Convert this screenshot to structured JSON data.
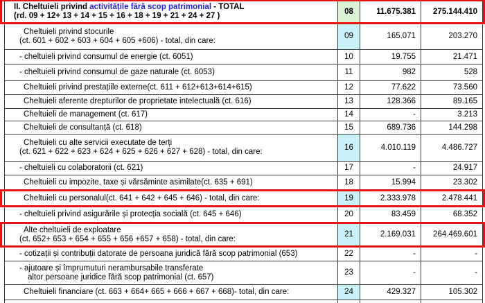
{
  "colors": {
    "border": "#3c3c3c",
    "highlight_box": "#e41414",
    "code_bg_green": "#ddf3d6",
    "code_bg_cyan": "#c9f2f8",
    "text_black": "#000000",
    "text_blue": "#2323cc"
  },
  "table": {
    "columns": [
      "description",
      "row_code",
      "value_1",
      "value_2"
    ],
    "rows": [
      {
        "code": "08",
        "code_bg": "green",
        "bold": true,
        "highlighted": true,
        "val1": "11.675.381",
        "val2": "275.144.410",
        "lines": [
          {
            "indent": "section",
            "segments": [
              {
                "text": "II. Cheltuieli privind ",
                "style": "black"
              },
              {
                "text": "activitățile fără scop patrimonial",
                "style": "blue"
              },
              {
                "text": " - TOTAL",
                "style": "black"
              }
            ]
          },
          {
            "indent": "section",
            "segments": [
              {
                "text": "(rd. 09 + 12+ 13 + 14 + 15 + 16 + 18 + 19 + 21 + 24 + 27 )",
                "style": "black"
              }
            ]
          }
        ]
      },
      {
        "code": "09",
        "code_bg": "cyan",
        "bold": false,
        "highlighted": false,
        "val1": "165.071",
        "val2": "203.270",
        "lines": [
          {
            "indent": "item",
            "segments": [
              {
                "text": "Cheltuieli privind stocurile",
                "style": "black"
              }
            ]
          },
          {
            "indent": "formula",
            "segments": [
              {
                "text": "(ct. 601 + 602 + 603 + 604 + 605 +606) - total, din care:",
                "style": "black"
              }
            ]
          }
        ]
      },
      {
        "code": "10",
        "code_bg": "white",
        "bold": false,
        "highlighted": false,
        "val1": "19.755",
        "val2": "21.471",
        "lines": [
          {
            "indent": "sub",
            "segments": [
              {
                "text": "- cheltuieli privind consumul de energie (ct. 6051)",
                "style": "black"
              }
            ]
          }
        ]
      },
      {
        "code": "11",
        "code_bg": "white",
        "bold": false,
        "highlighted": false,
        "val1": "982",
        "val2": "528",
        "lines": [
          {
            "indent": "sub",
            "segments": [
              {
                "text": "- cheltuieli privind consumul de gaze naturale (ct. 6053)",
                "style": "black"
              }
            ]
          }
        ]
      },
      {
        "code": "12",
        "code_bg": "white",
        "bold": false,
        "highlighted": false,
        "val1": "77.622",
        "val2": "73.560",
        "lines": [
          {
            "indent": "item",
            "segments": [
              {
                "text": "Cheltuieli privind prestațiile externe(ct. 611 + 612+613+614+615)",
                "style": "black"
              }
            ]
          }
        ]
      },
      {
        "code": "13",
        "code_bg": "white",
        "bold": false,
        "highlighted": false,
        "val1": "128.366",
        "val2": "89.165",
        "lines": [
          {
            "indent": "item",
            "segments": [
              {
                "text": "Cheltuieli aferente drepturilor de proprietate intelectuală (ct. 616)",
                "style": "black"
              }
            ]
          }
        ]
      },
      {
        "code": "14",
        "code_bg": "white",
        "bold": false,
        "highlighted": false,
        "val1": "-",
        "val2": "3.213",
        "lines": [
          {
            "indent": "item",
            "segments": [
              {
                "text": "Cheltuieli de management (ct. 617)",
                "style": "black"
              }
            ]
          }
        ]
      },
      {
        "code": "15",
        "code_bg": "white",
        "bold": false,
        "highlighted": false,
        "val1": "689.736",
        "val2": "144.298",
        "lines": [
          {
            "indent": "item",
            "segments": [
              {
                "text": "Cheltuieli de consultanță (ct. 618)",
                "style": "black"
              }
            ]
          }
        ]
      },
      {
        "code": "16",
        "code_bg": "cyan",
        "bold": false,
        "highlighted": false,
        "val1": "4.010.119",
        "val2": "4.486.727",
        "lines": [
          {
            "indent": "item",
            "segments": [
              {
                "text": "Cheltuieli cu alte servicii executate de terți",
                "style": "black"
              }
            ]
          },
          {
            "indent": "formula",
            "segments": [
              {
                "text": "(ct. 621 + 622 + 623 + 624 + 625 + 626 + 627 + 628) - total, din care:",
                "style": "black"
              }
            ]
          }
        ]
      },
      {
        "code": "17",
        "code_bg": "white",
        "bold": false,
        "highlighted": false,
        "val1": "-",
        "val2": "24.917",
        "lines": [
          {
            "indent": "sub",
            "segments": [
              {
                "text": "- cheltuieli cu colaboratorii (ct. 621)",
                "style": "black"
              }
            ]
          }
        ]
      },
      {
        "code": "18",
        "code_bg": "white",
        "bold": false,
        "highlighted": false,
        "val1": "15.994",
        "val2": "23.302",
        "lines": [
          {
            "indent": "item",
            "segments": [
              {
                "text": "Cheltuieli cu impozite, taxe și vărsăminte asimilate(ct. 635 + 691)",
                "style": "black"
              }
            ]
          }
        ]
      },
      {
        "code": "19",
        "code_bg": "cyan",
        "bold": false,
        "highlighted": true,
        "val1": "2.333.978",
        "val2": "2.478.441",
        "lines": [
          {
            "indent": "item",
            "segments": [
              {
                "text": "Cheltuieli cu personalul(ct. 641 + 642 + 645 + 646) - total, din care:",
                "style": "black"
              }
            ]
          }
        ]
      },
      {
        "code": "20",
        "code_bg": "white",
        "bold": false,
        "highlighted": false,
        "val1": "83.459",
        "val2": "68.352",
        "lines": [
          {
            "indent": "sub",
            "segments": [
              {
                "text": "- cheltuieli privind asigurările și protecția socială (ct. 645 + 646)",
                "style": "black"
              }
            ]
          }
        ]
      },
      {
        "code": "21",
        "code_bg": "cyan",
        "bold": false,
        "highlighted": true,
        "val1": "2.169.031",
        "val2": "264.469.601",
        "lines": [
          {
            "indent": "item",
            "segments": [
              {
                "text": "Alte cheltuieli de exploatare",
                "style": "black"
              }
            ]
          },
          {
            "indent": "formula",
            "segments": [
              {
                "text": "(ct. 652+ 653 + 654 + 655 + 656 +657 + 658) - total, din care:",
                "style": "black"
              }
            ]
          }
        ]
      },
      {
        "code": "22",
        "code_bg": "white",
        "bold": false,
        "highlighted": false,
        "val1": "-",
        "val2": "-",
        "lines": [
          {
            "indent": "sub",
            "segments": [
              {
                "text": "- cotizații și contribuții datorate de persoana juridică fără scop patrimonial (653)",
                "style": "black"
              }
            ]
          }
        ]
      },
      {
        "code": "23",
        "code_bg": "white",
        "bold": false,
        "highlighted": false,
        "val1": "-",
        "val2": "-",
        "lines": [
          {
            "indent": "sub",
            "segments": [
              {
                "text": "- ajutoare și împrumuturi nerambursabile transferate",
                "style": "black"
              }
            ]
          },
          {
            "indent": "cont",
            "segments": [
              {
                "text": "altor persoane juridice fără scop patrimonial (ct. 657)",
                "style": "black"
              }
            ]
          }
        ]
      },
      {
        "code": "24",
        "code_bg": "cyan",
        "bold": false,
        "highlighted": false,
        "val1": "429.327",
        "val2": "105.302",
        "lines": [
          {
            "indent": "item",
            "segments": [
              {
                "text": "Cheltuieli financiare (ct. 663 + 664+ 665 + 666 + 667 + 668)- total, din care:",
                "style": "black"
              }
            ]
          }
        ]
      }
    ]
  }
}
